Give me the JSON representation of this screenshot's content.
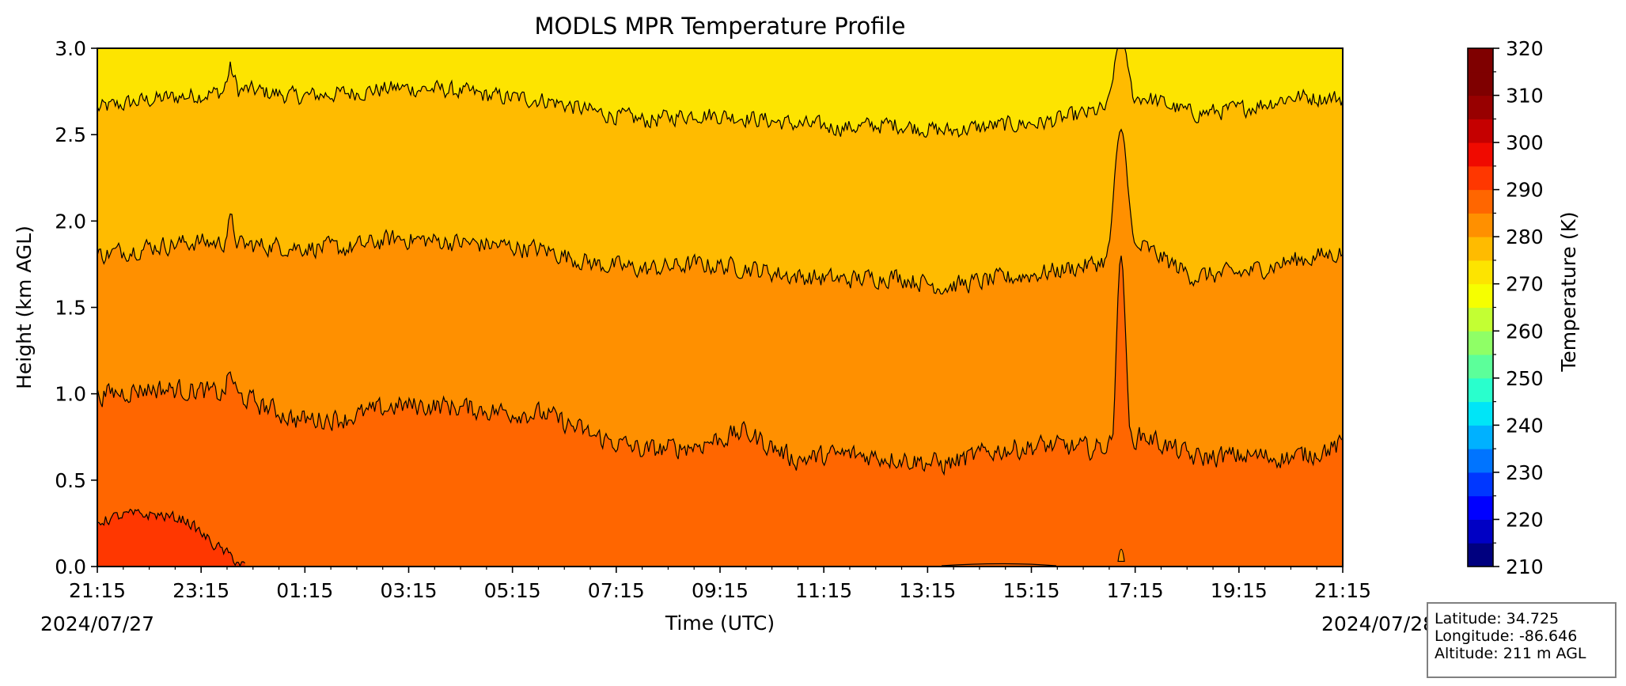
{
  "chart_data": {
    "type": "heatmap",
    "title": "MODLS MPR Temperature Profile",
    "xlabel": "Time (UTC)",
    "ylabel": "Height (km AGL)",
    "colorbar_label": "Temperature (K)",
    "x_tick_labels": [
      "21:15",
      "23:15",
      "01:15",
      "03:15",
      "05:15",
      "07:15",
      "09:15",
      "11:15",
      "13:15",
      "15:15",
      "17:15",
      "19:15",
      "21:15"
    ],
    "x_start_date": "2024/07/27",
    "x_end_date": "2024/07/28",
    "y_tick_labels": [
      "0.0",
      "0.5",
      "1.0",
      "1.5",
      "2.0",
      "2.5",
      "3.0"
    ],
    "ylim": [
      0.0,
      3.0
    ],
    "colorbar_ticks": [
      "210",
      "220",
      "230",
      "240",
      "250",
      "260",
      "270",
      "280",
      "290",
      "300",
      "310",
      "320"
    ],
    "clim": [
      210,
      320
    ],
    "contour_interval_K": 5,
    "colors": {
      "T_275_280": "#d8ff26",
      "T_280_285": "#fde400",
      "T_285_290": "#ffbb00",
      "T_290_295": "#ff9000",
      "T_295_300": "#ff6600",
      "T_300_305": "#ff3700"
    },
    "colorbar_colors": [
      "#00007f",
      "#0000c4",
      "#0000ff",
      "#0037ff",
      "#0074ff",
      "#00b1ff",
      "#00e5f7",
      "#29ffcd",
      "#5cff9a",
      "#8fff66",
      "#c3ff33",
      "#f6ff00",
      "#fde400",
      "#ffbb00",
      "#ff9000",
      "#ff6600",
      "#ff3700",
      "#f00a00",
      "#c50000",
      "#980000",
      "#7f0000",
      "#7f0000"
    ],
    "contours": [
      {
        "level_K": 280,
        "heights_km": [
          2.65,
          2.7,
          2.73,
          2.76,
          2.72,
          2.74,
          2.77,
          2.76,
          2.72,
          2.7,
          2.63,
          2.58,
          2.62,
          2.6,
          2.56,
          2.54,
          2.56,
          2.52,
          2.55,
          2.57,
          2.63,
          2.72,
          2.62,
          2.65,
          2.72,
          2.71
        ]
      },
      {
        "level_K": 285,
        "heights_km": [
          1.8,
          1.85,
          1.88,
          1.86,
          1.85,
          1.84,
          1.9,
          1.88,
          1.86,
          1.83,
          1.75,
          1.72,
          1.75,
          1.73,
          1.68,
          1.66,
          1.68,
          1.62,
          1.66,
          1.7,
          1.75,
          1.85,
          1.68,
          1.7,
          1.77,
          1.82
        ]
      },
      {
        "level_K": 290,
        "heights_km": [
          0.99,
          1.03,
          1.02,
          0.97,
          0.85,
          0.86,
          0.93,
          0.93,
          0.9,
          0.88,
          0.75,
          0.67,
          0.7,
          0.78,
          0.62,
          0.65,
          0.63,
          0.59,
          0.67,
          0.7,
          0.68,
          0.76,
          0.63,
          0.64,
          0.63,
          0.7
        ]
      },
      {
        "level_K": 295,
        "heights_km": [
          0.26,
          0.3,
          0.3,
          0.27,
          0.12,
          0.0
        ]
      }
    ],
    "spike": {
      "time_label": "~16:55",
      "contour_280_peak_km": 3.0,
      "contour_285_peak_km": 2.53,
      "contour_290_peak_km": 1.8
    },
    "contour_295_lens_near_time": "~16:55",
    "contour_295_lens_height_km": 0.13,
    "contour_295_near_surface_time_range": [
      "~13:15",
      "~16:30"
    ]
  },
  "info_box": {
    "latitude": "Latitude: 34.725",
    "longitude": "Longitude: -86.646",
    "altitude": "Altitude: 211 m AGL"
  }
}
